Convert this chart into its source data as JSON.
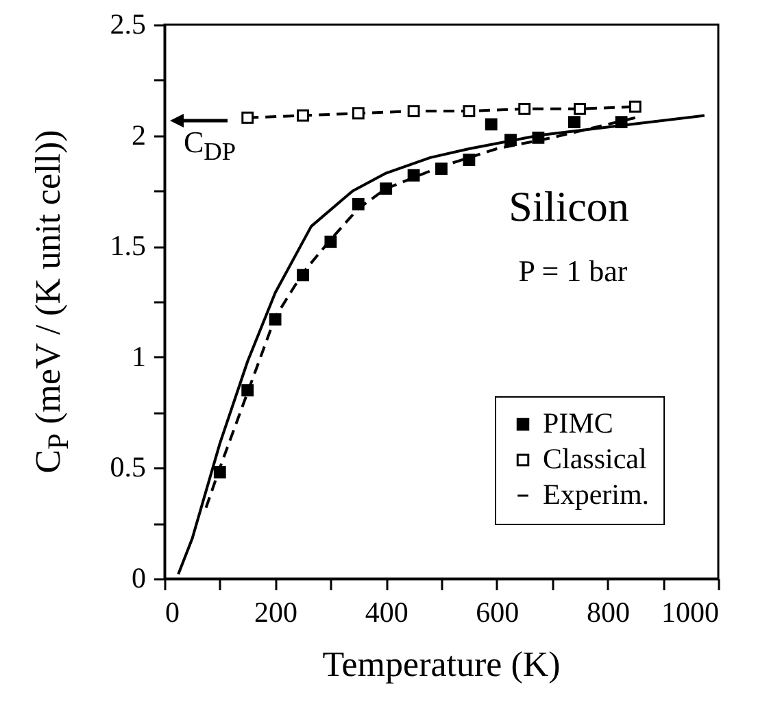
{
  "chart_data": {
    "type": "scatter",
    "xlabel": "Temperature  (K)",
    "ylabel": "C$_{P}$  (meV / (K unit cell))",
    "xlim": [
      0,
      1000
    ],
    "ylim": [
      0,
      2.5
    ],
    "xticks": [
      0,
      {
        "value": 100,
        "label": null
      },
      200,
      {
        "value": 300,
        "label": null
      },
      400,
      {
        "value": 500,
        "label": null
      },
      600,
      {
        "value": 700,
        "label": null
      },
      800,
      {
        "value": 900,
        "label": null
      },
      1000
    ],
    "yticks": [
      0,
      {
        "value": 0.25,
        "label": null
      },
      0.5,
      {
        "value": 0.75,
        "label": null
      },
      1,
      {
        "value": 1.25,
        "label": null
      },
      1.5,
      {
        "value": 1.75,
        "label": null
      },
      2,
      {
        "value": 2.25,
        "label": null
      },
      2.5
    ],
    "grid": false,
    "legend": "bottom right",
    "annotations": [
      "Silicon",
      "P = 1 bar",
      "C$_{DP}$"
    ],
    "series": [
      {
        "name": "PIMC",
        "type": "scatter",
        "marker": "square",
        "color": "#000000",
        "x": [
          100,
          150,
          200,
          250,
          300,
          350,
          400,
          450,
          500,
          550,
          590,
          625,
          675,
          740,
          825
        ],
        "values": [
          0.48,
          0.85,
          1.17,
          1.37,
          1.52,
          1.69,
          1.76,
          1.82,
          1.85,
          1.89,
          2.05,
          1.98,
          1.99,
          2.06,
          2.06
        ]
      },
      {
        "type": "line",
        "line_style": "dashed",
        "marker": "none",
        "color": "#000000",
        "x": [
          75,
          100,
          150,
          200,
          250,
          300,
          350,
          400,
          500,
          600,
          700,
          800,
          850
        ],
        "values": [
          0.32,
          0.5,
          0.84,
          1.18,
          1.38,
          1.53,
          1.67,
          1.76,
          1.86,
          1.94,
          1.99,
          2.05,
          2.08
        ]
      },
      {
        "name": "Classical",
        "type": "line",
        "line_style": "dashed",
        "marker": "square",
        "color": "#000000",
        "x": [
          150,
          250,
          350,
          450,
          550,
          650,
          750,
          850
        ],
        "values": [
          2.08,
          2.09,
          2.1,
          2.11,
          2.11,
          2.12,
          2.12,
          2.13
        ]
      },
      {
        "name": "Experim.",
        "type": "line",
        "line_style": "solid",
        "marker": "none",
        "color": "#000000",
        "x": [
          25,
          50,
          100,
          150,
          200,
          265,
          340,
          400,
          480,
          550,
          675,
          975
        ],
        "values": [
          0.02,
          0.18,
          0.61,
          0.98,
          1.29,
          1.59,
          1.75,
          1.83,
          1.9,
          1.94,
          2.0,
          2.09
        ]
      }
    ]
  }
}
